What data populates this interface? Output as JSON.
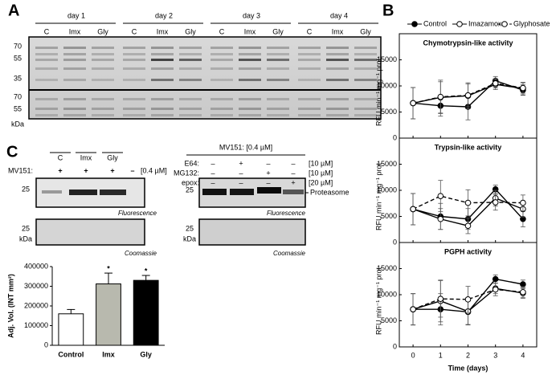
{
  "panel_a": {
    "letter": "A",
    "days": [
      "day 1",
      "day 2",
      "day 3",
      "day 4"
    ],
    "lanes": [
      "C",
      "Imx",
      "Gly"
    ],
    "markers_top": [
      "70",
      "55",
      "35"
    ],
    "markers_bottom": [
      "70",
      "55"
    ],
    "unit": "kDa"
  },
  "panel_b": {
    "letter": "B"
  },
  "panel_c": {
    "letter": "C",
    "left_lanes": [
      "C",
      "Imx",
      "Gly"
    ],
    "mv151_label": "MV151:",
    "mv151_signs": [
      "+",
      "+",
      "+",
      "–"
    ],
    "mv151_conc": "[0.4 µM]",
    "marker": "25",
    "unit": "kDa",
    "fluorescence": "Fluorescence",
    "coomassie": "Coomassie",
    "right_header": "MV151: [0.4 µM]",
    "treatments": [
      {
        "name": "E64:",
        "signs": [
          "–",
          "+",
          "–",
          "–"
        ],
        "conc": "[10 µM]"
      },
      {
        "name": "MG132:",
        "signs": [
          "–",
          "–",
          "+",
          "–"
        ],
        "conc": "[10 µM]"
      },
      {
        "name": "epox:",
        "signs": [
          "–",
          "–",
          "–",
          "+"
        ],
        "conc": "[20 µM]"
      }
    ],
    "proteasome": "Proteasome"
  },
  "chart_data": [
    {
      "type": "bar",
      "ylabel": "Adj. Vol. (INT mm²)",
      "categories": [
        "Control",
        "Imx",
        "Gly"
      ],
      "values": [
        160000,
        312000,
        330000
      ],
      "errors": [
        22000,
        55000,
        25000
      ],
      "colors": [
        "#ffffff",
        "#b8b9ae",
        "#000000"
      ],
      "significance": [
        null,
        "*",
        "*"
      ],
      "ylim": [
        0,
        400000
      ],
      "yticks": [
        0,
        100000,
        200000,
        300000,
        400000
      ]
    },
    {
      "type": "line",
      "title": "Chymotrypsin-like activity",
      "ylabel": "RFU min⁻¹ mg⁻¹ prot",
      "x": [
        0,
        1,
        2,
        3,
        4
      ],
      "xlim": [
        -0.5,
        4.5
      ],
      "xticks": [
        0,
        1,
        2,
        3,
        4
      ],
      "ylim": [
        0,
        20000
      ],
      "yticks": [
        0,
        5000,
        10000,
        15000
      ],
      "series": [
        {
          "name": "Control",
          "color": "#000000",
          "marker": "filled",
          "dashed": false,
          "values": [
            6700,
            6200,
            6000,
            11000,
            9200
          ],
          "errors": [
            3000,
            2000,
            2500,
            800,
            1000
          ]
        },
        {
          "name": "Imazamox",
          "color": "#000000",
          "marker": "open",
          "dashed": false,
          "values": [
            6700,
            7800,
            8100,
            10300,
            9500
          ],
          "errors": [
            3000,
            3000,
            2500,
            1000,
            1200
          ]
        },
        {
          "name": "Glyphosate",
          "color": "#000000",
          "marker": "open",
          "dashed": true,
          "values": [
            6700,
            7900,
            8200,
            10500,
            9600
          ],
          "errors": [
            3000,
            3200,
            2200,
            900,
            1000
          ]
        }
      ]
    },
    {
      "type": "line",
      "title": "Trypsin-like activity",
      "ylabel": "RFU min⁻¹ mg⁻¹ prot",
      "x": [
        0,
        1,
        2,
        3,
        4
      ],
      "xlim": [
        -0.5,
        4.5
      ],
      "xticks": [
        0,
        1,
        2,
        3,
        4
      ],
      "ylim": [
        0,
        20000
      ],
      "yticks": [
        0,
        5000,
        10000,
        15000
      ],
      "series": [
        {
          "name": "Control",
          "color": "#000000",
          "marker": "filled",
          "dashed": false,
          "values": [
            6400,
            5000,
            4500,
            10200,
            4500
          ],
          "errors": [
            3000,
            2500,
            2000,
            800,
            1500
          ]
        },
        {
          "name": "Imazamox",
          "color": "#000000",
          "marker": "open",
          "dashed": false,
          "values": [
            6400,
            4500,
            3200,
            8500,
            6400
          ],
          "errors": [
            3000,
            2000,
            1500,
            1500,
            1500
          ]
        },
        {
          "name": "Glyphosate",
          "color": "#000000",
          "marker": "open",
          "dashed": true,
          "values": [
            6400,
            8900,
            7600,
            7700,
            7600
          ],
          "errors": [
            3000,
            3000,
            2500,
            1500,
            1500
          ]
        }
      ]
    },
    {
      "type": "line",
      "title": "PGPH activity",
      "ylabel": "RFU min⁻¹ mg⁻¹ prot",
      "xlabel": "Time (days)",
      "x": [
        0,
        1,
        2,
        3,
        4
      ],
      "xlim": [
        -0.5,
        4.5
      ],
      "xticks": [
        0,
        1,
        2,
        3,
        4
      ],
      "ylim": [
        0,
        20000
      ],
      "yticks": [
        0,
        5000,
        10000,
        15000
      ],
      "series": [
        {
          "name": "Control",
          "color": "#000000",
          "marker": "filled",
          "dashed": false,
          "values": [
            7200,
            7200,
            6700,
            13000,
            12000
          ],
          "errors": [
            3000,
            3000,
            2500,
            800,
            800
          ]
        },
        {
          "name": "Imazamox",
          "color": "#000000",
          "marker": "open",
          "dashed": false,
          "values": [
            7200,
            8800,
            6800,
            11200,
            10300
          ],
          "errors": [
            3000,
            4000,
            2500,
            1000,
            1000
          ]
        },
        {
          "name": "Glyphosate",
          "color": "#000000",
          "marker": "open",
          "dashed": true,
          "values": [
            7200,
            9200,
            9100,
            11000,
            10500
          ],
          "errors": [
            3000,
            3500,
            2500,
            1200,
            1000
          ]
        }
      ]
    }
  ]
}
